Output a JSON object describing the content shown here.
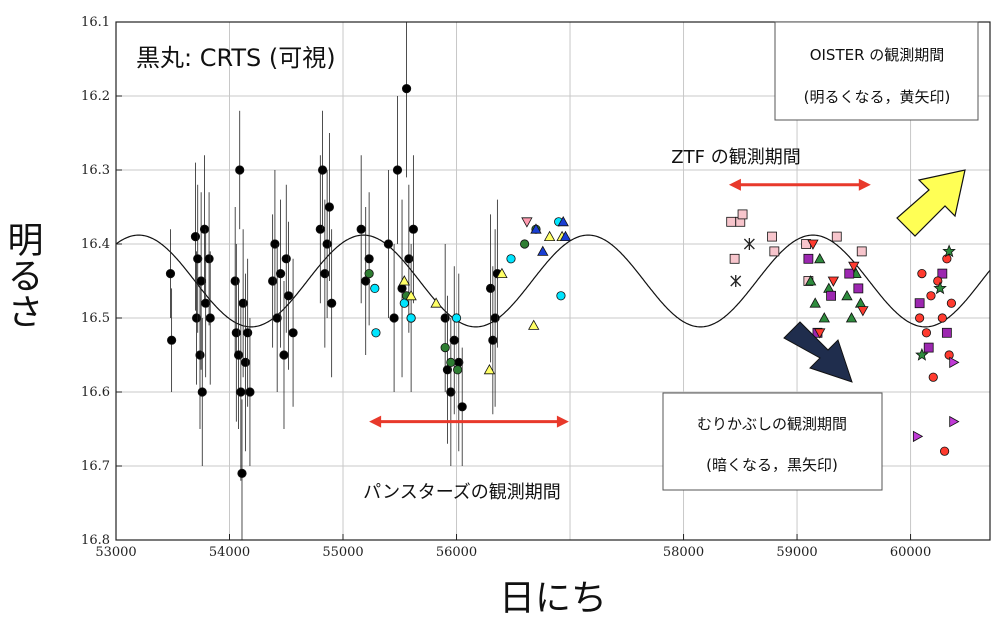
{
  "chart_data": {
    "type": "scatter",
    "xlabel": "日にち",
    "ylabel": "明るさ",
    "xlim": [
      53000,
      60700
    ],
    "ylim": [
      16.8,
      16.1
    ],
    "y_inverted": true,
    "grid": true,
    "x_ticks": [
      "53000",
      "54000",
      "55000",
      "56000",
      "58000",
      "59000",
      "60000"
    ],
    "x_tick_values": [
      53000,
      54000,
      55000,
      56000,
      58000,
      59000,
      60000
    ],
    "x_minor_gridlines": [
      57000
    ],
    "y_ticks": [
      "16.1",
      "16.2",
      "16.3",
      "16.4",
      "16.5",
      "16.6",
      "16.7",
      "16.8"
    ],
    "y_tick_values": [
      16.1,
      16.2,
      16.3,
      16.4,
      16.5,
      16.6,
      16.7,
      16.8
    ],
    "model_curve": {
      "mean": 16.45,
      "amplitude": 0.062,
      "period": 1980,
      "phase_peak_x": 55180
    },
    "series": [
      {
        "name": "黒丸: CRTS (可視)",
        "marker": "circle",
        "color": "#000000",
        "points": [
          [
            53480,
            16.44,
            0.06
          ],
          [
            53490,
            16.53,
            0.07
          ],
          [
            53700,
            16.39,
            0.1
          ],
          [
            53710,
            16.5,
            0.09
          ],
          [
            53720,
            16.42,
            0.1
          ],
          [
            53740,
            16.55,
            0.1
          ],
          [
            53750,
            16.45,
            0.12
          ],
          [
            53760,
            16.6,
            0.1
          ],
          [
            53780,
            16.38,
            0.1
          ],
          [
            53790,
            16.48,
            0.1
          ],
          [
            53820,
            16.42,
            0.09
          ],
          [
            53830,
            16.5,
            0.09
          ],
          [
            54050,
            16.45,
            0.1
          ],
          [
            54060,
            16.52,
            0.12
          ],
          [
            54080,
            16.55,
            0.1
          ],
          [
            54090,
            16.3,
            0.08
          ],
          [
            54100,
            16.6,
            0.12
          ],
          [
            54110,
            16.71,
            0.1
          ],
          [
            54120,
            16.48,
            0.1
          ],
          [
            54140,
            16.56,
            0.12
          ],
          [
            54160,
            16.52,
            0.1
          ],
          [
            54180,
            16.6,
            0.1
          ],
          [
            54380,
            16.45,
            0.09
          ],
          [
            54400,
            16.4,
            0.1
          ],
          [
            54420,
            16.5,
            0.1
          ],
          [
            54450,
            16.44,
            0.1
          ],
          [
            54480,
            16.55,
            0.1
          ],
          [
            54500,
            16.42,
            0.1
          ],
          [
            54520,
            16.47,
            0.1
          ],
          [
            54560,
            16.52,
            0.1
          ],
          [
            54800,
            16.38,
            0.1
          ],
          [
            54820,
            16.3,
            0.08
          ],
          [
            54840,
            16.44,
            0.1
          ],
          [
            54860,
            16.4,
            0.1
          ],
          [
            54880,
            16.35,
            0.1
          ],
          [
            54900,
            16.48,
            0.1
          ],
          [
            55160,
            16.38,
            0.1
          ],
          [
            55200,
            16.45,
            0.1
          ],
          [
            55230,
            16.42,
            0.09
          ],
          [
            55400,
            16.4,
            0.1
          ],
          [
            55450,
            16.5,
            0.1
          ],
          [
            55480,
            16.3,
            0.1
          ],
          [
            55520,
            16.46,
            0.12
          ],
          [
            55560,
            16.19,
            0.12
          ],
          [
            55580,
            16.42,
            0.1
          ],
          [
            55600,
            16.5,
            0.1
          ],
          [
            55620,
            16.38,
            0.1
          ],
          [
            55900,
            16.5,
            0.1
          ],
          [
            55920,
            16.57,
            0.1
          ],
          [
            55950,
            16.6,
            0.1
          ],
          [
            55980,
            16.53,
            0.1
          ],
          [
            56020,
            16.56,
            0.12
          ],
          [
            56050,
            16.62,
            0.08
          ],
          [
            56300,
            16.46,
            0.1
          ],
          [
            56320,
            16.53,
            0.1
          ],
          [
            56340,
            16.5,
            0.12
          ],
          [
            56360,
            16.44,
            0.1
          ]
        ]
      },
      {
        "name": "",
        "marker": "circle",
        "color": "#2e7d32",
        "points": [
          [
            55230,
            16.44
          ],
          [
            55560,
            16.47
          ],
          [
            55900,
            16.54
          ],
          [
            55950,
            16.56
          ],
          [
            56010,
            16.57
          ],
          [
            56600,
            16.4
          ],
          [
            56700,
            16.38
          ]
        ]
      },
      {
        "name": "",
        "marker": "circle",
        "color": "#00e5ff",
        "points": [
          [
            55280,
            16.46
          ],
          [
            55290,
            16.52
          ],
          [
            55540,
            16.48
          ],
          [
            55600,
            16.5
          ],
          [
            56000,
            16.5
          ],
          [
            56480,
            16.42
          ],
          [
            56900,
            16.37
          ],
          [
            56920,
            16.47
          ]
        ]
      },
      {
        "name": "",
        "marker": "triangle",
        "color": "#ffff66",
        "points": [
          [
            55540,
            16.45
          ],
          [
            55600,
            16.47
          ],
          [
            55820,
            16.48
          ],
          [
            56290,
            16.57
          ],
          [
            56400,
            16.44
          ],
          [
            56680,
            16.51
          ],
          [
            56820,
            16.39
          ],
          [
            56930,
            16.39
          ]
        ]
      },
      {
        "name": "",
        "marker": "triangle",
        "color": "#1a3fd4",
        "points": [
          [
            56700,
            16.38
          ],
          [
            56760,
            16.41
          ],
          [
            56940,
            16.37
          ],
          [
            56960,
            16.39
          ]
        ]
      },
      {
        "name": "",
        "marker": "triangle-down",
        "color": "#ff9bb0",
        "points": [
          [
            56620,
            16.37
          ]
        ]
      },
      {
        "name": "ZTF",
        "marker": "square",
        "color": "#f7c5cc",
        "points": [
          [
            58420,
            16.37
          ],
          [
            58450,
            16.42
          ],
          [
            58500,
            16.37
          ],
          [
            58520,
            16.36
          ],
          [
            58780,
            16.39
          ],
          [
            58800,
            16.41
          ],
          [
            59080,
            16.4
          ],
          [
            59100,
            16.45
          ],
          [
            59350,
            16.39
          ],
          [
            59570,
            16.41
          ]
        ]
      },
      {
        "name": "",
        "marker": "cross",
        "color": "#222222",
        "points": [
          [
            58460,
            16.45
          ],
          [
            58580,
            16.4
          ]
        ]
      },
      {
        "name": "",
        "marker": "triangle",
        "color": "#2e8b3d",
        "points": [
          [
            59120,
            16.45
          ],
          [
            59160,
            16.48
          ],
          [
            59200,
            16.42
          ],
          [
            59240,
            16.5
          ],
          [
            59280,
            16.46
          ],
          [
            59440,
            16.47
          ],
          [
            59480,
            16.5
          ],
          [
            59520,
            16.44
          ],
          [
            59560,
            16.48
          ]
        ]
      },
      {
        "name": "",
        "marker": "square",
        "color": "#9c27b0",
        "points": [
          [
            59100,
            16.42
          ],
          [
            59180,
            16.52
          ],
          [
            59300,
            16.47
          ],
          [
            59460,
            16.44
          ],
          [
            59540,
            16.46
          ],
          [
            60080,
            16.48
          ],
          [
            60160,
            16.54
          ],
          [
            60280,
            16.44
          ],
          [
            60320,
            16.52
          ]
        ]
      },
      {
        "name": "",
        "marker": "triangle-down",
        "color": "#ff3b2f",
        "points": [
          [
            59140,
            16.4
          ],
          [
            59200,
            16.52
          ],
          [
            59320,
            16.45
          ],
          [
            59500,
            16.43
          ],
          [
            59580,
            16.49
          ]
        ]
      },
      {
        "name": "",
        "marker": "circle",
        "color": "#ff3b2f",
        "points": [
          [
            60080,
            16.5
          ],
          [
            60100,
            16.44
          ],
          [
            60140,
            16.52
          ],
          [
            60180,
            16.47
          ],
          [
            60200,
            16.58
          ],
          [
            60240,
            16.45
          ],
          [
            60280,
            16.5
          ],
          [
            60320,
            16.42
          ],
          [
            60340,
            16.55
          ],
          [
            60360,
            16.48
          ],
          [
            60300,
            16.68
          ]
        ]
      },
      {
        "name": "",
        "marker": "triangle-right",
        "color": "#c03ad6",
        "points": [
          [
            60060,
            16.66
          ],
          [
            60380,
            16.56
          ],
          [
            60380,
            16.64
          ]
        ]
      },
      {
        "name": "",
        "marker": "star",
        "color": "#2e8b3d",
        "points": [
          [
            60100,
            16.55
          ],
          [
            60260,
            16.46
          ],
          [
            60340,
            16.41
          ]
        ]
      }
    ],
    "annotations": {
      "crts_label": "黒丸: CRTS (可視)",
      "panstarrs_label": "パンスターズの観測期間",
      "ztf_label": "ZTF の観測期間",
      "muri_box": {
        "line1": "むりかぶしの観測期間",
        "line2": "(暗くなる，黒矢印)"
      },
      "oister_box": {
        "line1": "OISTER の観測期間",
        "line2": "(明るくなる，黄矢印)"
      },
      "panstarrs_range": [
        55200,
        56000
      ],
      "ztf_range": [
        58400,
        59650
      ]
    },
    "colors": {
      "range_arrow": "#e8392b",
      "yellow_arrow": "#ffff55",
      "navy_arrow": "#1f2d4d",
      "grid": "#c8c8c8"
    }
  }
}
